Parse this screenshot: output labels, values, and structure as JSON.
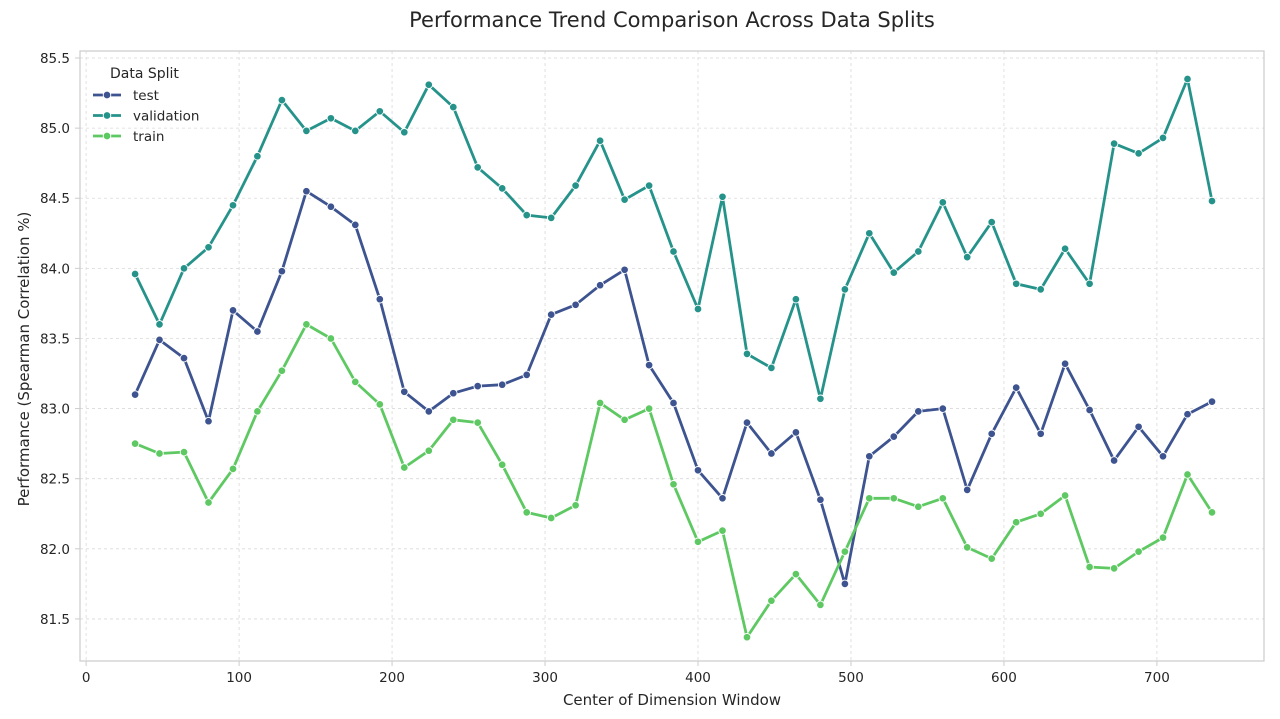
{
  "chart_data": {
    "type": "line",
    "title": "Performance Trend Comparison Across Data Splits",
    "xlabel": "Center of Dimension Window",
    "ylabel": "Performance (Spearman Correlation %)",
    "xlim": [
      -4,
      770
    ],
    "ylim": [
      81.2,
      85.55
    ],
    "xticks": [
      0,
      100,
      200,
      300,
      400,
      500,
      600,
      700
    ],
    "yticks": [
      81.5,
      82.0,
      82.5,
      83.0,
      83.5,
      84.0,
      84.5,
      85.0,
      85.5
    ],
    "grid": true,
    "legend": {
      "title": "Data Split",
      "placement": "top-left"
    },
    "x": [
      32,
      48,
      64,
      80,
      96,
      112,
      128,
      144,
      160,
      176,
      192,
      208,
      224,
      240,
      256,
      272,
      288,
      304,
      320,
      336,
      352,
      368,
      384,
      400,
      416,
      432,
      448,
      464,
      480,
      496,
      512,
      528,
      544,
      560,
      576,
      592,
      608,
      624,
      640,
      656,
      672,
      688,
      704,
      720,
      736
    ],
    "series": [
      {
        "name": "test",
        "color": "#3e5490",
        "values": [
          83.1,
          83.49,
          83.36,
          82.91,
          83.7,
          83.55,
          83.98,
          84.55,
          84.44,
          84.31,
          83.78,
          83.12,
          82.98,
          83.11,
          83.16,
          83.17,
          83.24,
          83.67,
          83.74,
          83.88,
          83.99,
          83.31,
          83.04,
          82.56,
          82.36,
          82.9,
          82.68,
          82.83,
          82.35,
          81.75,
          82.66,
          82.8,
          82.98,
          83.0,
          82.42,
          82.82,
          83.15,
          82.82,
          83.32,
          82.99,
          82.63,
          82.87,
          82.66,
          82.96,
          83.05
        ]
      },
      {
        "name": "validation",
        "color": "#26938b",
        "values": [
          83.96,
          83.6,
          84.0,
          84.15,
          84.45,
          84.8,
          85.2,
          84.98,
          85.07,
          84.98,
          85.12,
          84.97,
          85.31,
          85.15,
          84.72,
          84.57,
          84.38,
          84.36,
          84.59,
          84.91,
          84.49,
          84.59,
          84.12,
          83.71,
          84.51,
          83.39,
          83.29,
          83.78,
          83.07,
          83.85,
          84.25,
          83.97,
          84.12,
          84.47,
          84.08,
          84.33,
          83.89,
          83.85,
          84.14,
          83.89,
          84.89,
          84.82,
          84.93,
          85.35,
          84.48
        ]
      },
      {
        "name": "train",
        "color": "#5ec962",
        "values": [
          82.75,
          82.68,
          82.69,
          82.33,
          82.57,
          82.98,
          83.27,
          83.6,
          83.5,
          83.19,
          83.03,
          82.58,
          82.7,
          82.92,
          82.9,
          82.6,
          82.26,
          82.22,
          82.31,
          83.04,
          82.92,
          83.0,
          82.46,
          82.05,
          82.13,
          81.37,
          81.63,
          81.82,
          81.6,
          81.98,
          82.36,
          82.36,
          82.3,
          82.36,
          82.01,
          81.93,
          82.19,
          82.25,
          82.38,
          81.87,
          81.86,
          81.98,
          82.08,
          82.53,
          82.26
        ]
      }
    ]
  }
}
